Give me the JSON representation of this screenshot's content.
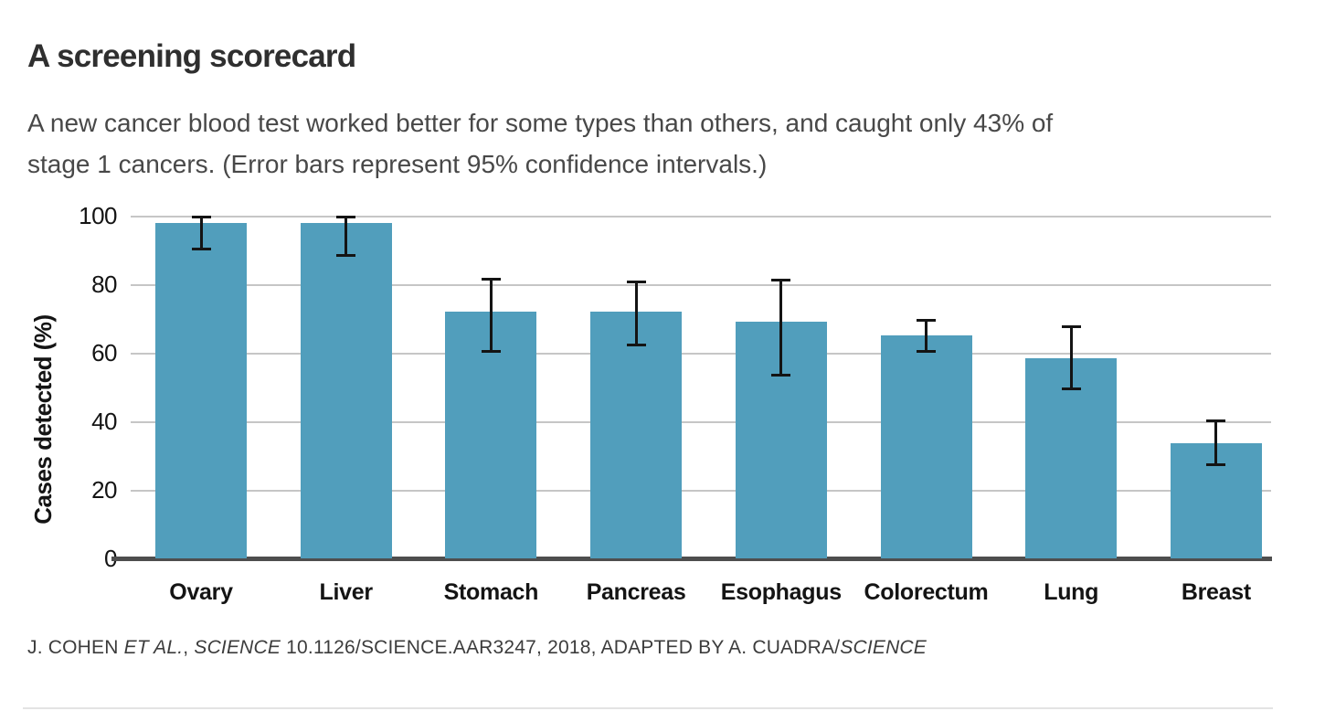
{
  "page": {
    "title": "A screening scorecard",
    "subtitle_line1": "A new cancer blood test worked better for some types than others, and caught only 43% of",
    "subtitle_line2": "stage 1 cancers. (Error bars represent 95% confidence intervals.)",
    "footer_segments": [
      {
        "text": "J. COHEN ",
        "italic": false
      },
      {
        "text": "ET AL.",
        "italic": true
      },
      {
        "text": ", ",
        "italic": false
      },
      {
        "text": "SCIENCE",
        "italic": true
      },
      {
        "text": " 10.1126/SCIENCE.AAR3247, 2018, ADAPTED BY A. CUADRA/",
        "italic": false
      },
      {
        "text": "SCIENCE",
        "italic": true
      }
    ]
  },
  "chart_data": {
    "type": "bar",
    "title": "A screening scorecard",
    "subtitle": "A new cancer blood test worked better for some types than others, and caught only 43% of stage 1 cancers. (Error bars represent 95% confidence intervals.)",
    "xlabel": "",
    "ylabel": "Cases detected (%)",
    "ylim": [
      0,
      100
    ],
    "yticks": [
      0,
      20,
      40,
      60,
      80,
      100
    ],
    "grid": "horizontal-gridlines-on",
    "legend": "none",
    "bar_color": "#519EBC",
    "error_bar_color": "#141414",
    "categories": [
      "Ovary",
      "Liver",
      "Stomach",
      "Pancreas",
      "Esophagus",
      "Colorectum",
      "Lung",
      "Breast"
    ],
    "values": [
      98,
      98,
      72,
      72,
      69,
      65,
      58.5,
      33.5
    ],
    "error_low": [
      90,
      88,
      60,
      62,
      53,
      60,
      49,
      27
    ],
    "error_high": [
      100,
      100,
      82,
      81,
      81.5,
      70,
      68,
      40.5
    ],
    "error_note": "Error bars represent 95% confidence intervals",
    "source": "J. COHEN ET AL., SCIENCE 10.1126/SCIENCE.AAR3247, 2018, ADAPTED BY A. CUADRA/SCIENCE"
  }
}
